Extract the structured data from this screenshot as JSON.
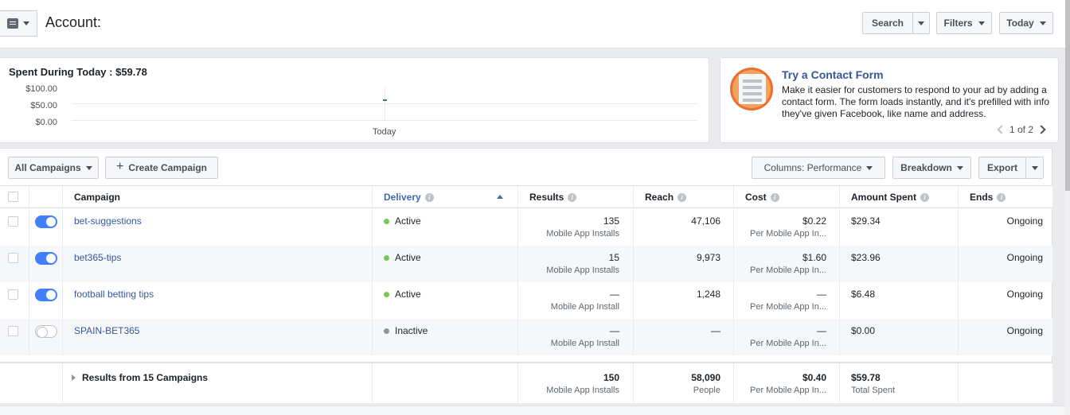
{
  "header": {
    "account_title": "Account:",
    "search_label": "Search",
    "filters_label": "Filters",
    "date_label": "Today"
  },
  "spent": {
    "title": "Spent During Today : $59.78",
    "y_ticks": [
      "$100.00",
      "$50.00",
      "$0.00"
    ],
    "x_label": "Today"
  },
  "tip": {
    "title": "Try a Contact Form",
    "body": "Make it easier for customers to respond to your ad by adding a contact form. The form loads instantly, and it's prefilled with info they've given Facebook, like name and address.",
    "pager": "1 of 2"
  },
  "toolbar": {
    "all_campaigns": "All Campaigns",
    "create_campaign": "Create Campaign",
    "columns": "Columns: Performance",
    "breakdown": "Breakdown",
    "export": "Export"
  },
  "table": {
    "headers": {
      "campaign": "Campaign",
      "delivery": "Delivery",
      "results": "Results",
      "reach": "Reach",
      "cost": "Cost",
      "amount_spent": "Amount Spent",
      "ends": "Ends"
    },
    "rows": [
      {
        "name": "bet-suggestions",
        "on": true,
        "delivery": "Active",
        "results": "135",
        "results_sub": "Mobile App Installs",
        "reach": "47,106",
        "cost": "$0.22",
        "cost_sub": "Per Mobile App In...",
        "spent": "$29.34",
        "ends": "Ongoing"
      },
      {
        "name": "bet365-tips",
        "on": true,
        "delivery": "Active",
        "results": "15",
        "results_sub": "Mobile App Installs",
        "reach": "9,973",
        "cost": "$1.60",
        "cost_sub": "Per Mobile App In...",
        "spent": "$23.96",
        "ends": "Ongoing"
      },
      {
        "name": "football betting tips",
        "on": true,
        "delivery": "Active",
        "results": "—",
        "results_sub": "Mobile App Install",
        "reach": "1,248",
        "cost": "—",
        "cost_sub": "Per Mobile App In...",
        "spent": "$6.48",
        "ends": "Ongoing"
      },
      {
        "name": "SPAIN-BET365",
        "on": false,
        "delivery": "Inactive",
        "results": "—",
        "results_sub": "Mobile App Install",
        "reach": "—",
        "cost": "—",
        "cost_sub": "Per Mobile App In...",
        "spent": "$0.00",
        "ends": "Ongoing"
      }
    ],
    "summary": {
      "label": "Results from 15 Campaigns",
      "results": "150",
      "results_sub": "Mobile App Installs",
      "reach": "58,090",
      "reach_sub": "People",
      "cost": "$0.40",
      "cost_sub": "Per Mobile App In...",
      "spent": "$59.78",
      "spent_sub": "Total Spent"
    }
  },
  "colors": {
    "link": "#365899",
    "toggle_on": "#4080ff",
    "active_dot": "#78c55a",
    "inactive_dot": "#90949c"
  }
}
